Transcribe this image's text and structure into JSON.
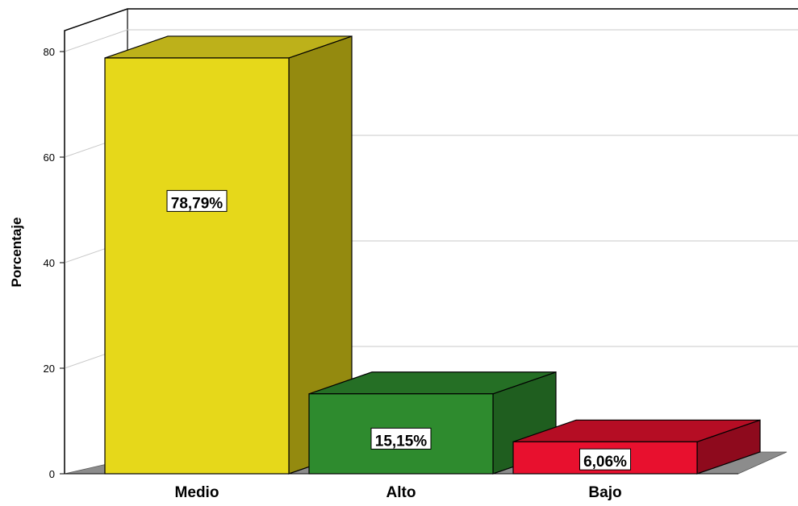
{
  "chart_data": {
    "type": "bar",
    "categories": [
      "Medio",
      "Alto",
      "Bajo"
    ],
    "values": [
      78.79,
      15.15,
      6.06
    ],
    "data_labels": [
      "78,79%",
      "15,15%",
      "6,06%"
    ],
    "ylabel": "Porcentaje",
    "xlabel": "",
    "ylim": [
      0,
      80
    ],
    "yticks": [
      0,
      20,
      40,
      60,
      80
    ],
    "grid": true,
    "three_d": true,
    "colors": {
      "Medio": {
        "front": "#e6d81a",
        "side": "#948a0f",
        "top": "#bdb11a"
      },
      "Alto": {
        "front": "#2e8b2e",
        "side": "#1f5e1f",
        "top": "#256f25"
      },
      "Bajo": {
        "front": "#e8102e",
        "side": "#8e0a1d",
        "top": "#b50d24"
      }
    }
  }
}
